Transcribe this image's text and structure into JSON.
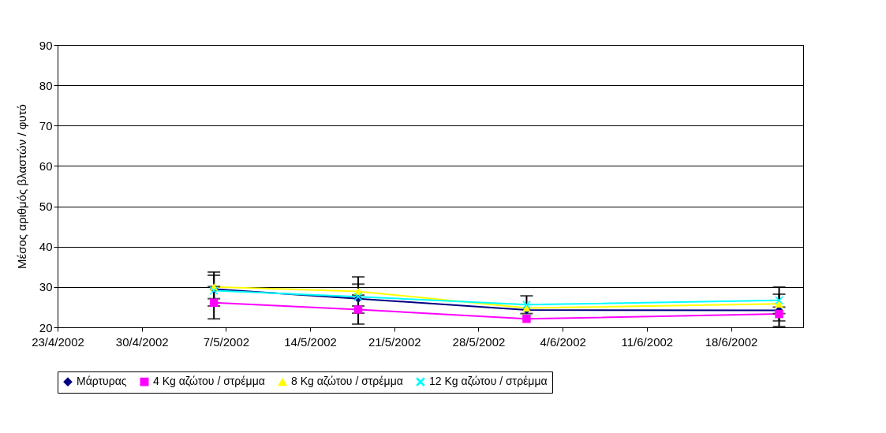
{
  "chart_data": {
    "type": "line",
    "ylabel": "Μέσος αριθμός βλαστών / φυτό",
    "x": [
      "2002-05-06",
      "2002-05-18",
      "2002-06-01",
      "2002-06-22"
    ],
    "xlim": [
      "2002-04-23",
      "2002-06-24"
    ],
    "xticks": [
      {
        "value": "2002-04-23",
        "label": "23/4/2002"
      },
      {
        "value": "2002-04-30",
        "label": "30/4/2002"
      },
      {
        "value": "2002-05-07",
        "label": "7/5/2002"
      },
      {
        "value": "2002-05-14",
        "label": "14/5/2002"
      },
      {
        "value": "2002-05-21",
        "label": "21/5/2002"
      },
      {
        "value": "2002-05-28",
        "label": "28/5/2002"
      },
      {
        "value": "2002-06-04",
        "label": "4/6/2002"
      },
      {
        "value": "2002-06-11",
        "label": "11/6/2002"
      },
      {
        "value": "2002-06-18",
        "label": "18/6/2002"
      }
    ],
    "ylim": [
      20,
      90
    ],
    "yticks": [
      20,
      30,
      40,
      50,
      60,
      70,
      80,
      90
    ],
    "grid": "y",
    "legend": "bottom",
    "series": [
      {
        "name": "Μάρτυρας",
        "color": "#000080",
        "marker": "diamond",
        "values": [
          29.5,
          27.1,
          24.3,
          24.2
        ],
        "errors": [
          4.2,
          3.6,
          null,
          4.0
        ]
      },
      {
        "name": "4 Kg αζώτου / στρέμμα",
        "color": "#ff00ff",
        "marker": "square",
        "values": [
          26.1,
          24.4,
          22.1,
          23.3
        ],
        "errors": [
          4.0,
          3.6,
          null,
          1.7
        ]
      },
      {
        "name": "8 Kg αζώτου / στρέμμα",
        "color": "#ffff00",
        "marker": "triangle",
        "values": [
          30.0,
          28.9,
          24.8,
          25.8
        ],
        "errors": [
          2.9,
          3.6,
          null,
          null
        ]
      },
      {
        "name": "12 Kg αζώτου / στρέμμα",
        "color": "#00ffff",
        "marker": "cross",
        "values": [
          29.1,
          27.6,
          25.6,
          26.7
        ],
        "errors": [
          null,
          null,
          2.2,
          3.3
        ]
      }
    ]
  }
}
